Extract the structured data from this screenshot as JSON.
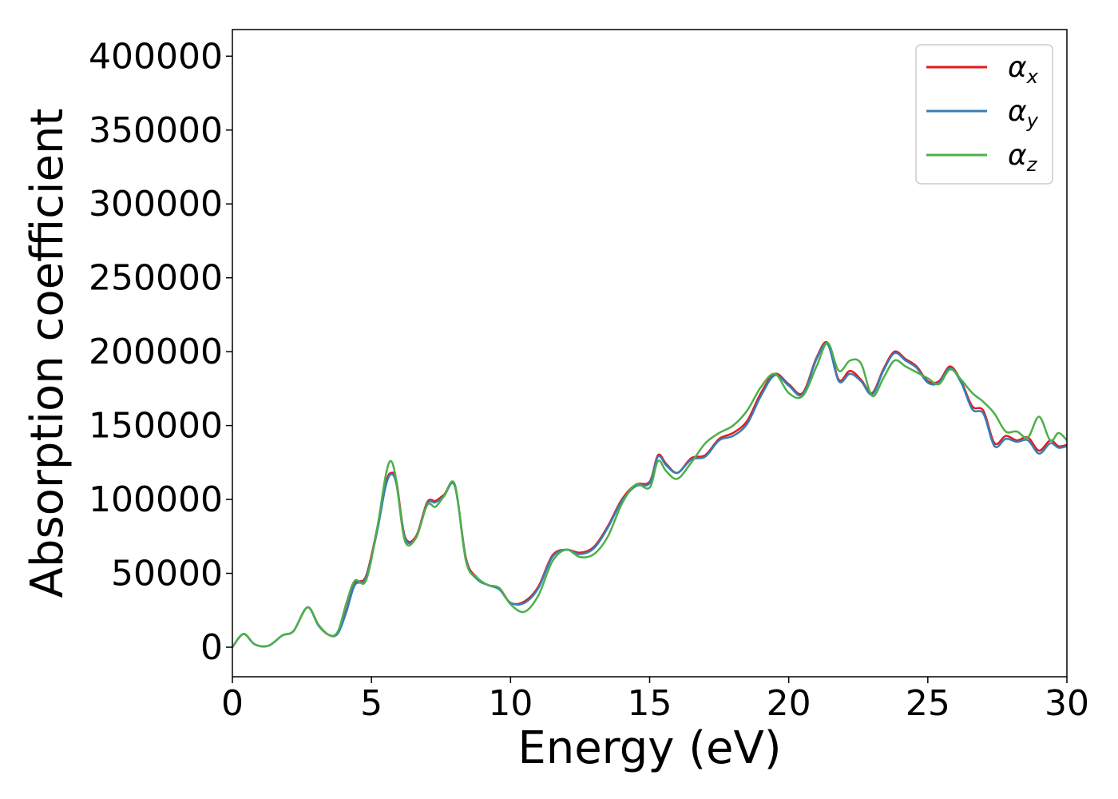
{
  "chart_data": {
    "type": "line",
    "title": "",
    "xlabel": "Energy (eV)",
    "ylabel": "Absorption coefficient",
    "xlim": [
      0,
      30
    ],
    "ylim": [
      -20000,
      418000
    ],
    "xticks": [
      0,
      5,
      10,
      15,
      20,
      25,
      30
    ],
    "xtick_labels": [
      "0",
      "5",
      "10",
      "15",
      "20",
      "25",
      "30"
    ],
    "yticks": [
      0,
      50000,
      100000,
      150000,
      200000,
      250000,
      300000,
      350000,
      400000
    ],
    "ytick_labels": [
      "0",
      "50000",
      "100000",
      "150000",
      "200000",
      "250000",
      "300000",
      "350000",
      "400000"
    ],
    "grid": false,
    "legend_position": "top-right",
    "x": [
      0,
      0.4,
      0.8,
      1.3,
      1.8,
      2.2,
      2.7,
      3.1,
      3.5,
      3.8,
      4.1,
      4.4,
      4.8,
      5.2,
      5.5,
      5.7,
      5.9,
      6.2,
      6.6,
      7.0,
      7.3,
      7.6,
      8.0,
      8.4,
      8.8,
      9.2,
      9.6,
      10.0,
      10.5,
      11.0,
      11.5,
      12.0,
      12.5,
      13.0,
      13.5,
      14.0,
      14.5,
      15.0,
      15.3,
      15.6,
      16.0,
      16.5,
      17.0,
      17.5,
      18.0,
      18.5,
      19.0,
      19.5,
      20.0,
      20.5,
      21.0,
      21.4,
      21.8,
      22.2,
      22.6,
      23.0,
      23.4,
      23.8,
      24.2,
      24.6,
      25.0,
      25.4,
      25.8,
      26.2,
      26.6,
      27.0,
      27.4,
      27.8,
      28.2,
      28.6,
      29.0,
      29.4,
      29.7,
      30.0
    ],
    "series": [
      {
        "name": "α_x",
        "label_main": "α",
        "label_sub": "x",
        "color": "#e41a1c",
        "values": [
          0,
          9000,
          2000,
          1000,
          8000,
          11000,
          27000,
          15000,
          8000,
          10000,
          25000,
          43000,
          48000,
          80000,
          110000,
          118000,
          112000,
          75000,
          75000,
          98000,
          99000,
          103000,
          109000,
          60000,
          47000,
          42000,
          40000,
          30000,
          31000,
          41000,
          62000,
          66000,
          64000,
          68000,
          82000,
          100000,
          110000,
          112000,
          130000,
          124000,
          118000,
          128000,
          130000,
          141000,
          145000,
          153000,
          172000,
          185000,
          178000,
          172000,
          196000,
          206000,
          181000,
          187000,
          181000,
          172000,
          188000,
          200000,
          195000,
          190000,
          180000,
          180000,
          190000,
          180000,
          163000,
          160000,
          138000,
          143000,
          140000,
          142000,
          133000,
          140000,
          136000,
          137000
        ]
      },
      {
        "name": "α_y",
        "label_main": "α",
        "label_sub": "y",
        "color": "#377eb8",
        "values": [
          0,
          9000,
          2000,
          1000,
          8000,
          11000,
          27000,
          14500,
          8000,
          9500,
          24000,
          42000,
          47000,
          78000,
          108000,
          117000,
          110000,
          74000,
          74000,
          97000,
          98000,
          102000,
          109000,
          59000,
          46000,
          42000,
          39000,
          30000,
          30000,
          40000,
          61000,
          66000,
          63000,
          67000,
          81000,
          99000,
          109000,
          111000,
          129000,
          123000,
          118000,
          127000,
          129000,
          140000,
          143000,
          151000,
          170000,
          184000,
          177000,
          171000,
          195000,
          205000,
          180000,
          185000,
          180000,
          171000,
          187000,
          199000,
          194000,
          189000,
          179000,
          179000,
          189000,
          179000,
          161000,
          158000,
          136000,
          141000,
          139000,
          140000,
          131000,
          138000,
          135000,
          136000
        ]
      },
      {
        "name": "α_z",
        "label_main": "α",
        "label_sub": "z",
        "color": "#4daf4a",
        "values": [
          0,
          9000,
          2000,
          1000,
          8000,
          11000,
          27000,
          15000,
          8000,
          11000,
          30000,
          45000,
          45000,
          80000,
          115000,
          126000,
          112000,
          72000,
          74000,
          96000,
          95000,
          102000,
          110000,
          58000,
          47000,
          42000,
          40000,
          29000,
          24000,
          35000,
          58000,
          66000,
          61000,
          63000,
          75000,
          97000,
          110000,
          108000,
          126000,
          119000,
          114000,
          125000,
          138000,
          145000,
          150000,
          160000,
          176000,
          185000,
          172000,
          170000,
          190000,
          206000,
          187000,
          194000,
          192000,
          170000,
          182000,
          194000,
          190000,
          186000,
          182000,
          178000,
          188000,
          181000,
          172000,
          166000,
          158000,
          146000,
          146000,
          142000,
          156000,
          140000,
          145000,
          140000
        ]
      }
    ]
  }
}
